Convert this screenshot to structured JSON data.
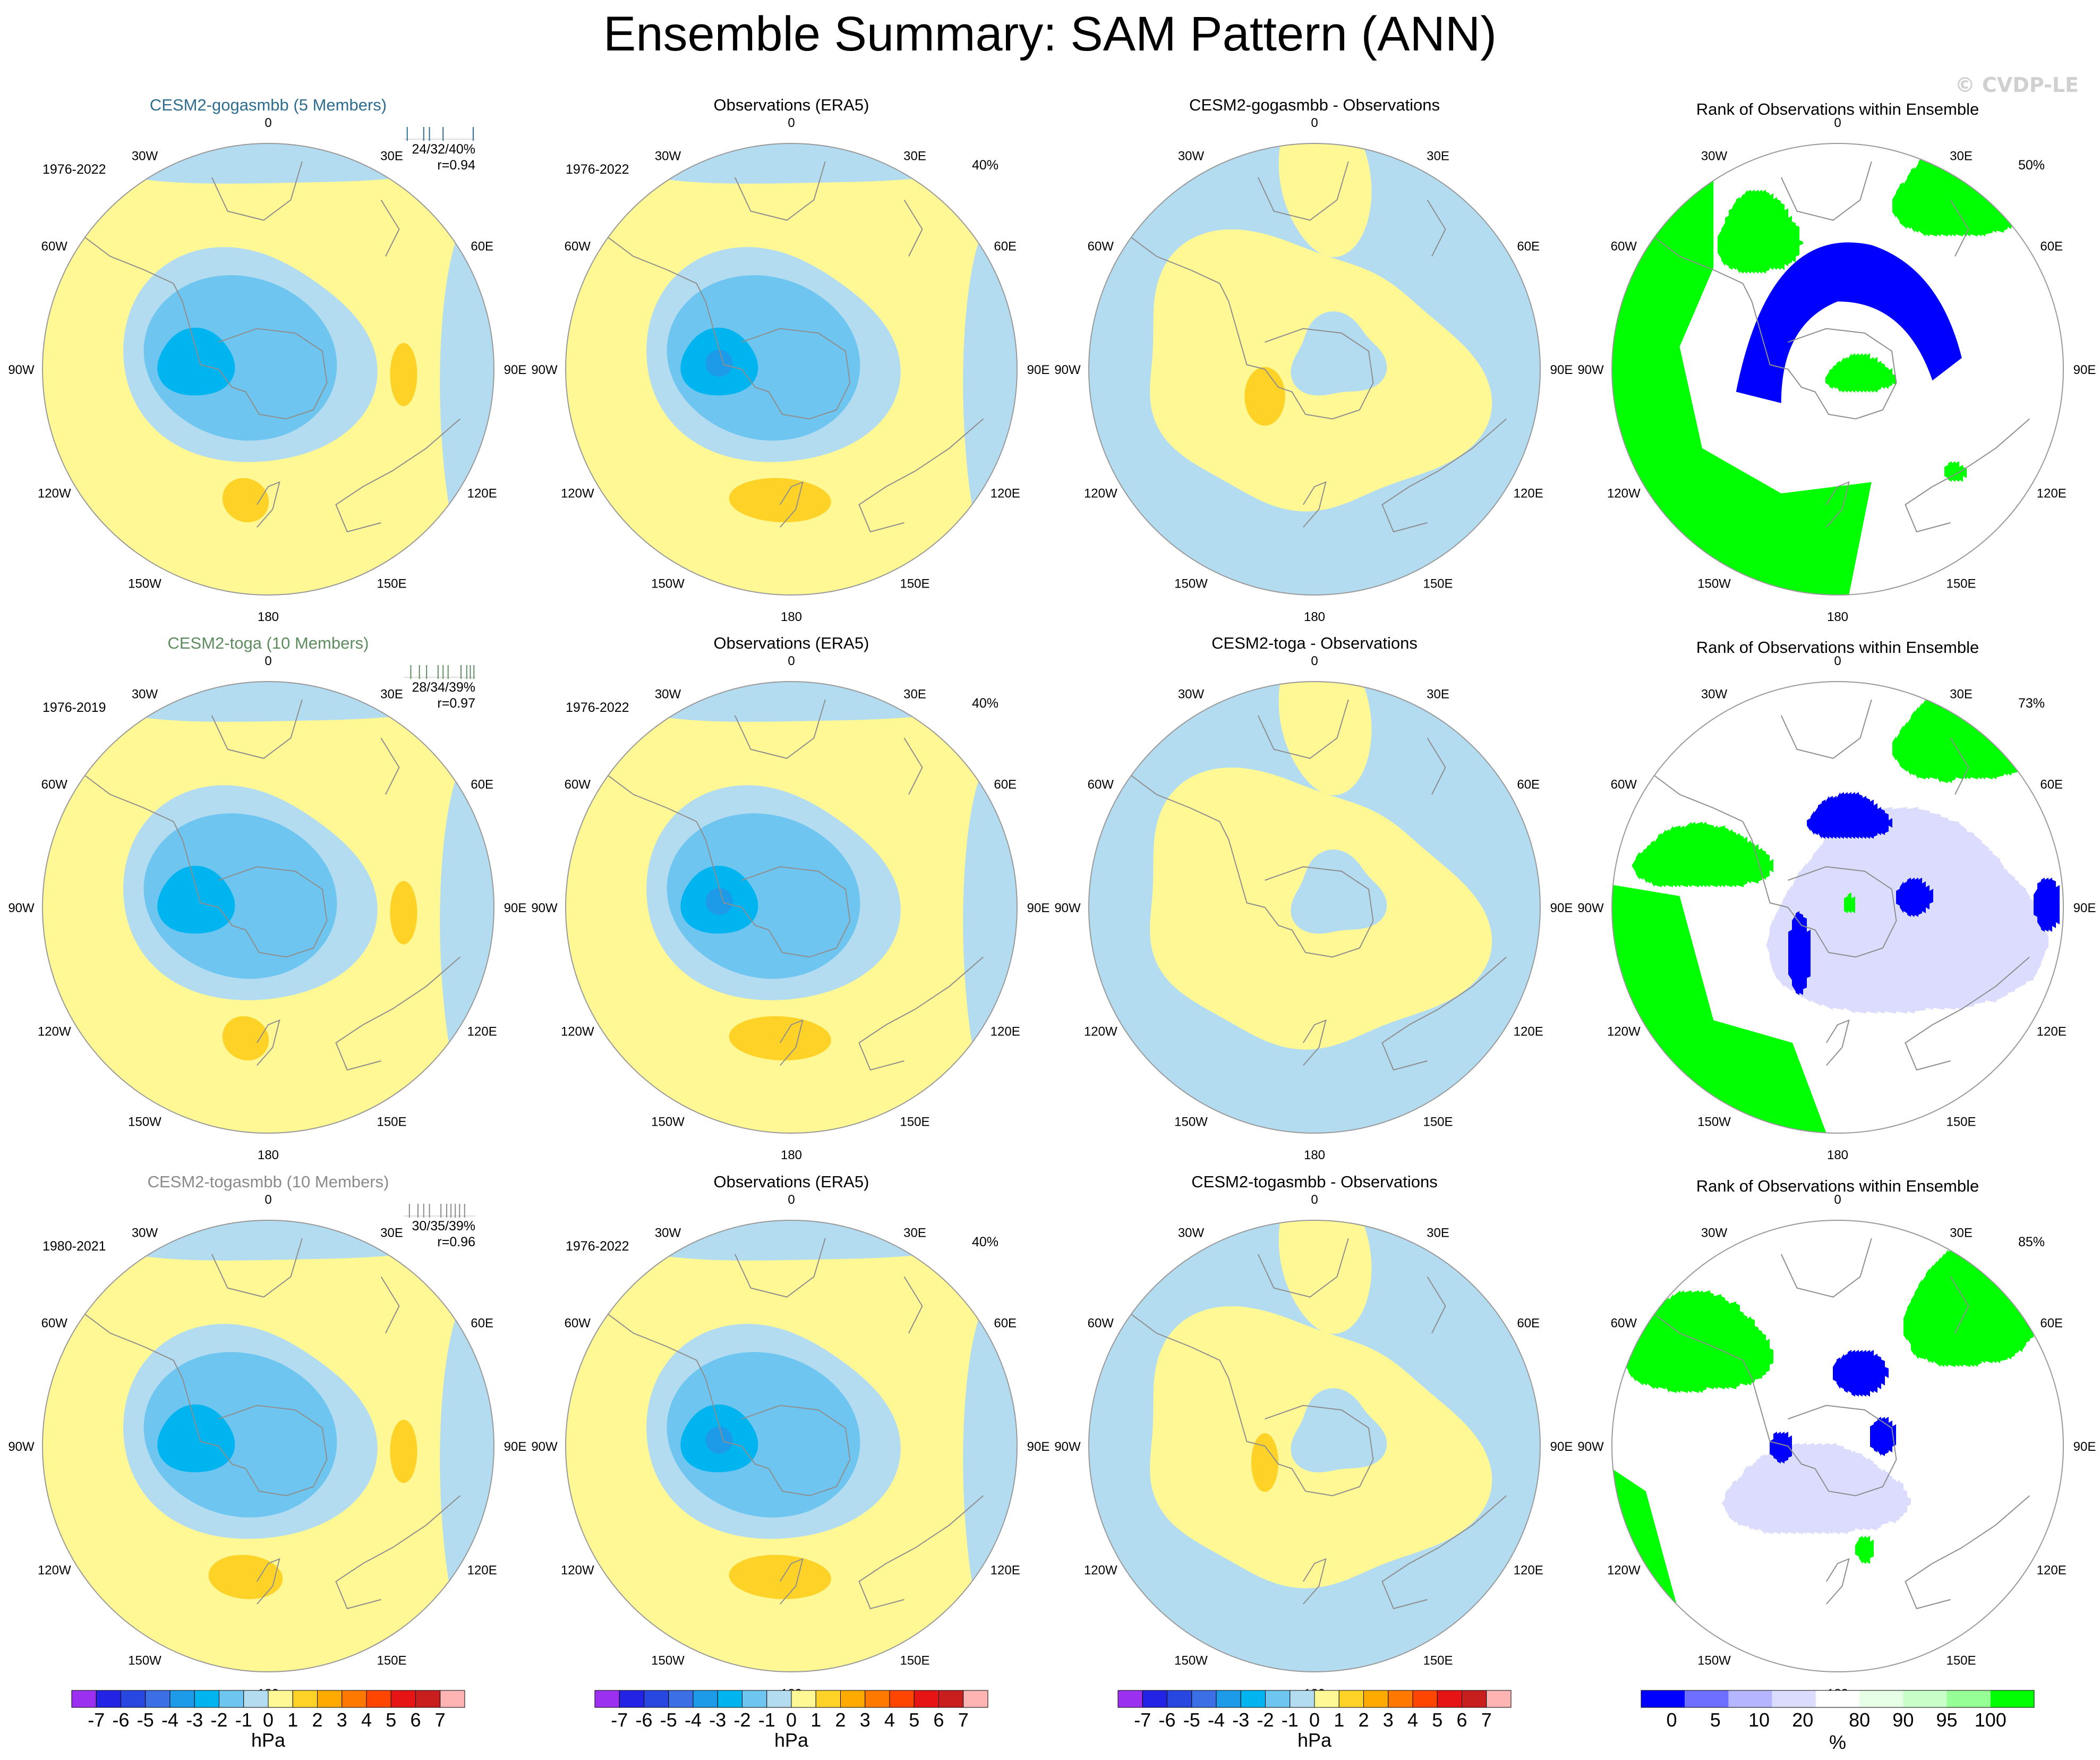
{
  "title": "Ensemble Summary: SAM Pattern (ANN)",
  "watermark": "© CVDP-LE",
  "colors": {
    "model1": "#2e6d8e",
    "model2": "#5e8c5e",
    "model3": "#8a8a8a",
    "land": "#8e8e8e"
  },
  "chart_data": {
    "type": "polar-contour-map",
    "projection": "south-polar-stereographic",
    "variable": "Sea level pressure anomaly pattern (SAM)",
    "lon_labels": [
      "0",
      "30E",
      "60E",
      "90E",
      "120E",
      "150E",
      "180",
      "150W",
      "120W",
      "90W",
      "60W",
      "30W"
    ],
    "pattern_levels": [
      -7,
      -6,
      -5,
      -4,
      -3,
      -2,
      -1,
      0,
      1,
      2,
      3,
      4,
      5,
      6,
      7
    ],
    "pattern_colors": [
      "#9b30f0",
      "#2323e6",
      "#2846e0",
      "#3c6fe6",
      "#1e9be8",
      "#00b4f0",
      "#6ec6f0",
      "#b4dcf0",
      "#fff894",
      "#ffd228",
      "#ffaa00",
      "#ff7800",
      "#ff4600",
      "#e61414",
      "#c81e1e",
      "#ffb4b4"
    ],
    "pattern_units": "hPa",
    "rank_tick_labels": [
      "0",
      "5",
      "10",
      "20",
      "80",
      "90",
      "95",
      "100"
    ],
    "rank_colors": [
      "#0000ff",
      "#6e6eff",
      "#b4b4ff",
      "#dcdcff",
      "#ffffff",
      "#e6ffe6",
      "#c8ffc8",
      "#96ff96",
      "#00ff00"
    ],
    "rank_units": "%",
    "rows": [
      {
        "model_title": "CESM2-gogasmbb (5 Members)",
        "model_years": "1976-2022",
        "model_stats": "24/32/40%",
        "model_r": "r=0.94",
        "member_ticks": [
          0.05,
          0.28,
          0.36,
          0.55,
          0.97
        ],
        "obs_title": "Observations (ERA5)",
        "obs_years": "1976-2022",
        "obs_pct": "40%",
        "diff_title": "CESM2-gogasmbb - Observations",
        "rank_title": "Rank of Observations within Ensemble",
        "rank_pct": "50%"
      },
      {
        "model_title": "CESM2-toga (10 Members)",
        "model_years": "1976-2019",
        "model_stats": "28/34/39%",
        "model_r": "r=0.97",
        "member_ticks": [
          0.1,
          0.22,
          0.32,
          0.48,
          0.55,
          0.62,
          0.8,
          0.88,
          0.93,
          0.98
        ],
        "obs_title": "Observations (ERA5)",
        "obs_years": "1976-2022",
        "obs_pct": "40%",
        "diff_title": "CESM2-toga - Observations",
        "rank_title": "Rank of Observations within Ensemble",
        "rank_pct": "73%"
      },
      {
        "model_title": "CESM2-togasmbb (10 Members)",
        "model_years": "1980-2021",
        "model_stats": "30/35/39%",
        "model_r": "r=0.96",
        "member_ticks": [
          0.08,
          0.2,
          0.28,
          0.36,
          0.52,
          0.6,
          0.66,
          0.72,
          0.78,
          0.85
        ],
        "obs_title": "Observations (ERA5)",
        "obs_years": "1976-2022",
        "obs_pct": "40%",
        "diff_title": "CESM2-togasmbb - Observations",
        "rank_title": "Rank of Observations within Ensemble",
        "rank_pct": "85%"
      }
    ]
  }
}
